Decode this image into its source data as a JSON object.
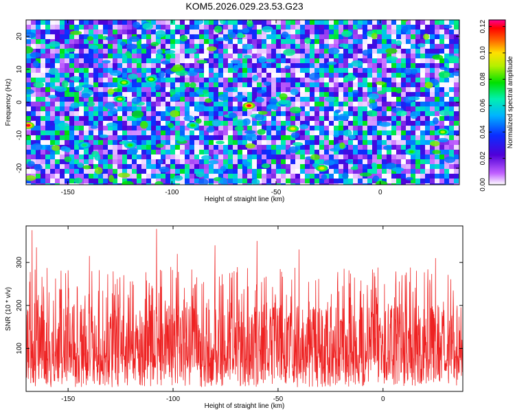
{
  "title": "KOM5.2026.029.23.53.G23",
  "chart_data": [
    {
      "type": "heatmap",
      "title": "KOM5.2026.029.23.53.G23",
      "xlabel": "Height of straight line (km)",
      "ylabel": "Frequency (Hz)",
      "xlim": [
        -170,
        38
      ],
      "ylim": [
        -25,
        25
      ],
      "xticks": [
        "-150",
        "-100",
        "-50",
        "0"
      ],
      "yticks": [
        "-20",
        "-10",
        "0",
        "10",
        "20"
      ],
      "colorbar": {
        "label": "Normalized spectral amplitude",
        "range": [
          0,
          0.125
        ],
        "ticks": [
          "0.00",
          "0.02",
          "0.04",
          "0.06",
          "0.08",
          "0.10",
          "0.12"
        ]
      },
      "hotspots": [
        {
          "x": -169,
          "y": -7,
          "value": 0.12
        },
        {
          "x": -63,
          "y": -1,
          "value": 0.12
        },
        {
          "x": -42,
          "y": -8,
          "value": 0.1
        },
        {
          "x": -28,
          "y": -20,
          "value": 0.1
        },
        {
          "x": -125,
          "y": 1,
          "value": 0.09
        },
        {
          "x": -123,
          "y": 6,
          "value": 0.09
        },
        {
          "x": -110,
          "y": 7,
          "value": 0.09
        },
        {
          "x": 30,
          "y": -9,
          "value": 0.09
        },
        {
          "x": 15,
          "y": -15,
          "value": 0.08
        },
        {
          "x": -90,
          "y": -7,
          "value": 0.08
        },
        {
          "x": -120,
          "y": -13,
          "value": 0.08
        },
        {
          "x": -142,
          "y": -13,
          "value": 0.07
        }
      ]
    },
    {
      "type": "line",
      "xlabel": "Height of straight line (km)",
      "ylabel": "SNR (10 * v/v)",
      "xlim": [
        -170,
        38
      ],
      "ylim": [
        0,
        385
      ],
      "xticks": [
        "-150",
        "-100",
        "-50",
        "0"
      ],
      "yticks": [
        "100",
        "200",
        "300"
      ],
      "series": [
        {
          "name": "SNR",
          "color": "#ee2222"
        }
      ],
      "peaks": [
        {
          "x": -167,
          "y": 375
        },
        {
          "x": -108,
          "y": 378
        },
        {
          "x": -165,
          "y": 335
        },
        {
          "x": -140,
          "y": 315
        },
        {
          "x": -98,
          "y": 320
        },
        {
          "x": -80,
          "y": 340
        },
        {
          "x": -60,
          "y": 350
        },
        {
          "x": -40,
          "y": 330
        },
        {
          "x": 25,
          "y": 310
        }
      ]
    }
  ]
}
